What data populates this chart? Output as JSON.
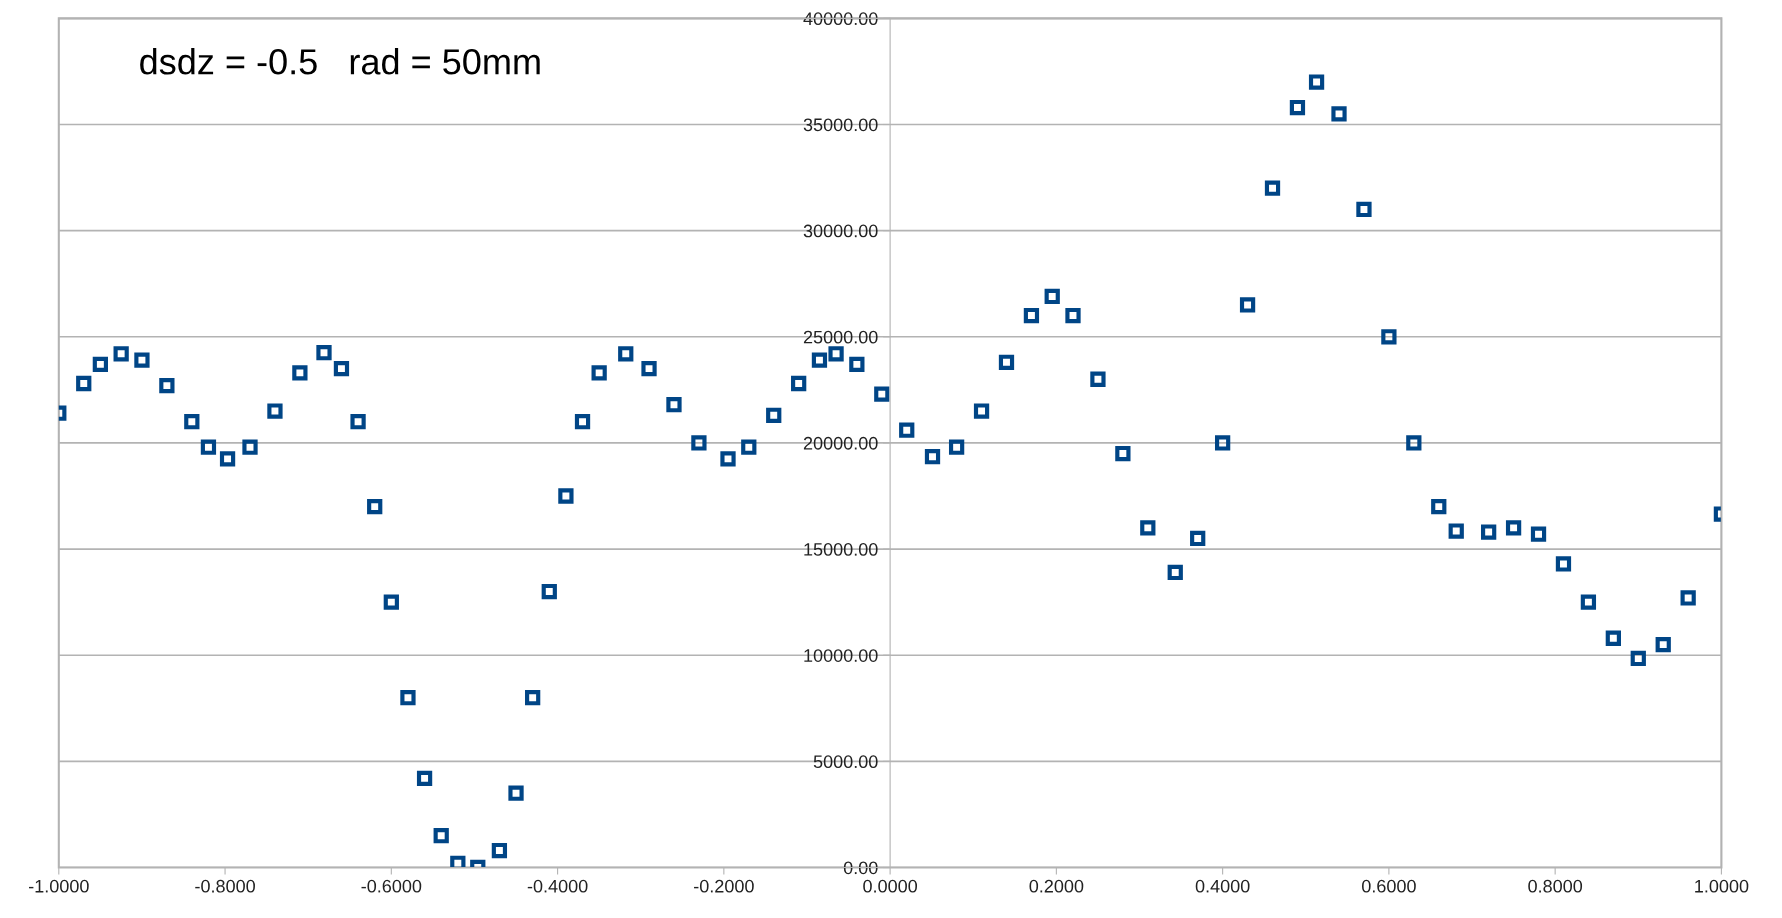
{
  "chart_data": {
    "type": "scatter",
    "marker": "square",
    "grid": "y",
    "legend": false,
    "annotations": [
      "dsdz = -0.5   rad = 50mm"
    ],
    "xlim": [
      -1,
      1
    ],
    "ylim": [
      0,
      40000
    ],
    "xticks": [
      {
        "value": -1,
        "label": "-1.0000"
      },
      {
        "value": -0.8,
        "label": "-0.8000"
      },
      {
        "value": -0.6,
        "label": "-0.6000"
      },
      {
        "value": -0.4,
        "label": "-0.4000"
      },
      {
        "value": -0.2,
        "label": "-0.2000"
      },
      {
        "value": 0,
        "label": "0.0000"
      },
      {
        "value": 0.2,
        "label": "0.2000"
      },
      {
        "value": 0.4,
        "label": "0.4000"
      },
      {
        "value": 0.6,
        "label": "0.6000"
      },
      {
        "value": 0.8,
        "label": "0.8000"
      },
      {
        "value": 1,
        "label": "1.0000"
      }
    ],
    "yticks": [
      {
        "value": 0,
        "label": "0.00"
      },
      {
        "value": 5000,
        "label": "5000.00"
      },
      {
        "value": 10000,
        "label": "10000.00"
      },
      {
        "value": 15000,
        "label": "15000.00"
      },
      {
        "value": 20000,
        "label": "20000.00"
      },
      {
        "value": 25000,
        "label": "25000.00"
      },
      {
        "value": 30000,
        "label": "30000.00"
      },
      {
        "value": 35000,
        "label": "35000.00"
      },
      {
        "value": 40000,
        "label": "40000.00"
      }
    ],
    "series": [
      {
        "color": "#004586",
        "x": [
          -1,
          -0.97,
          -0.95,
          -0.925,
          -0.9,
          -0.87,
          -0.84,
          -0.82,
          -0.797,
          -0.77,
          -0.74,
          -0.71,
          -0.681,
          -0.66,
          -0.64,
          -0.62,
          -0.6,
          -0.58,
          -0.56,
          -0.54,
          -0.52,
          -0.496,
          -0.47,
          -0.45,
          -0.43,
          -0.41,
          -0.39,
          -0.37,
          -0.35,
          -0.318,
          -0.29,
          -0.26,
          -0.23,
          -0.195,
          -0.17,
          -0.14,
          -0.11,
          -0.085,
          -0.065,
          -0.04,
          -0.01,
          0.02,
          0.051,
          0.08,
          0.11,
          0.14,
          0.17,
          0.195,
          0.22,
          0.25,
          0.28,
          0.31,
          0.343,
          0.37,
          0.4,
          0.43,
          0.46,
          0.49,
          0.513,
          0.54,
          0.57,
          0.6,
          0.63,
          0.66,
          0.681,
          0.72,
          0.75,
          0.78,
          0.81,
          0.84,
          0.87,
          0.9,
          0.93,
          0.96,
          1.0
        ],
        "values": [
          21400,
          22800,
          23700,
          24200,
          23900,
          22700,
          21000,
          19800,
          19250,
          19800,
          21500,
          23300,
          24250,
          23500,
          21000,
          17000,
          12500,
          8000,
          4200,
          1500,
          200,
          0,
          800,
          3500,
          8000,
          13000,
          17500,
          21000,
          23300,
          24200,
          23500,
          21800,
          20000,
          19250,
          19800,
          21300,
          22800,
          23900,
          24200,
          23700,
          22300,
          20600,
          19350,
          19800,
          21500,
          23800,
          26000,
          26900,
          26000,
          23000,
          19500,
          16000,
          13900,
          15500,
          20000,
          26500,
          32000,
          35800,
          37000,
          35500,
          31000,
          25000,
          20000,
          17000,
          15850,
          15800,
          16000,
          15700,
          14300,
          12500,
          10800,
          9850,
          10500,
          12700,
          16650
        ]
      }
    ]
  }
}
